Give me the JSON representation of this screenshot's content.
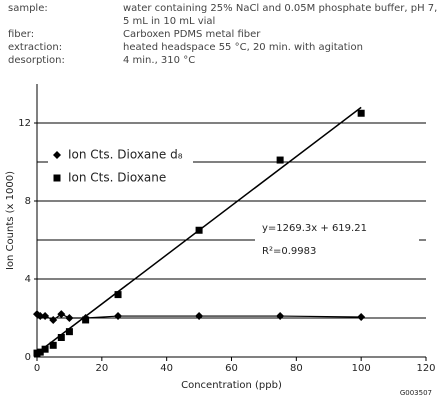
{
  "header": {
    "rows": [
      {
        "label": "sample:",
        "lines": [
          "water containing 25% NaCl and 0.05M phosphate buffer, pH 7,",
          "5 mL in 10 mL vial"
        ]
      },
      {
        "label": "fiber:",
        "lines": [
          "Carboxen PDMS metal fiber"
        ]
      },
      {
        "label": "extraction:",
        "lines": [
          "heated headspace 55 °C, 20 min. with agitation"
        ]
      },
      {
        "label": "desorption:",
        "lines": [
          "4 min., 310 °C"
        ]
      }
    ]
  },
  "chart_data": {
    "type": "scatter",
    "x_label": "Concentration (ppb)",
    "y_label": "Ion Counts (x 1000)",
    "xlim": [
      0,
      120
    ],
    "xticks": [
      0,
      20,
      40,
      60,
      80,
      100,
      120
    ],
    "ylim": [
      0,
      14
    ],
    "yticks": [
      0,
      4,
      8,
      12
    ],
    "grid": true,
    "grid_lines": [
      2,
      4,
      6,
      8,
      10,
      12
    ],
    "series": [
      {
        "name": "Ion Cts. Dioxane d₈",
        "marker": "diamond",
        "color": "#000000",
        "connect": true,
        "x": [
          0,
          1,
          2.5,
          5,
          7.5,
          10,
          15,
          25,
          50,
          75,
          100
        ],
        "values": [
          2.2,
          2.1,
          2.1,
          1.9,
          2.2,
          2.0,
          2.0,
          2.1,
          2.1,
          2.1,
          2.05
        ]
      },
      {
        "name": "Ion Cts. Dioxane",
        "marker": "square",
        "color": "#000000",
        "connect": false,
        "x": [
          0,
          1,
          2.5,
          5,
          7.5,
          10,
          15,
          25,
          50,
          75,
          100
        ],
        "values": [
          0.2,
          0.25,
          0.4,
          0.6,
          1.0,
          1.3,
          1.9,
          3.2,
          6.5,
          10.1,
          12.5
        ]
      }
    ],
    "trendline": {
      "x": [
        0,
        100
      ],
      "values": [
        0.2,
        12.8
      ]
    },
    "equation": "y=1269.3x + 619.21",
    "r_squared": "R²=0.9983",
    "code": "G003507"
  }
}
